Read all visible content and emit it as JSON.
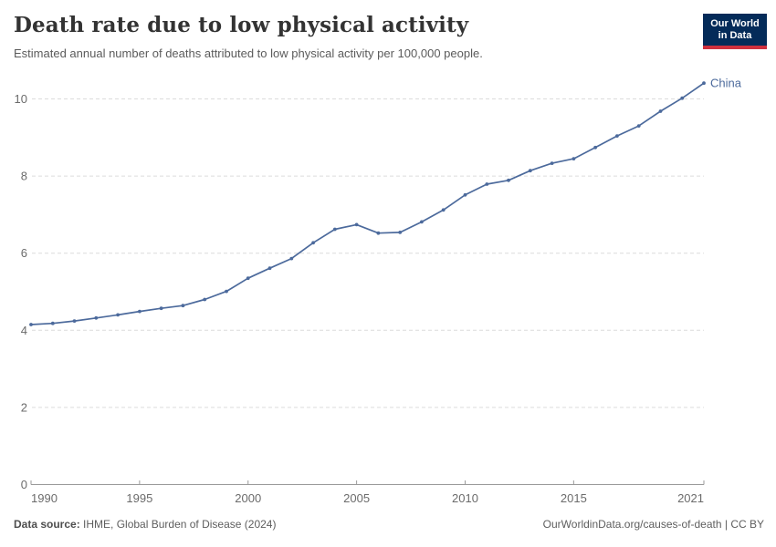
{
  "header": {
    "title": "Death rate due to low physical activity",
    "subtitle": "Estimated annual number of deaths attributed to low physical activity per 100,000 people."
  },
  "logo": {
    "line1": "Our World",
    "line2": "in Data",
    "bg_color": "#042b59",
    "bar_color": "#cf303e"
  },
  "chart_data": {
    "type": "line",
    "title": "Death rate due to low physical activity",
    "xlabel": "",
    "ylabel": "",
    "xlim": [
      1990,
      2021
    ],
    "ylim": [
      0,
      10.6
    ],
    "x_ticks": [
      1990,
      1995,
      2000,
      2005,
      2010,
      2015,
      2021
    ],
    "y_ticks": [
      0,
      2,
      4,
      6,
      8,
      10
    ],
    "grid": "horizontal-dashed",
    "legend_position": "end-of-line-label",
    "series": [
      {
        "name": "China",
        "color": "#4c6a9c",
        "x": [
          1990,
          1991,
          1992,
          1993,
          1994,
          1995,
          1996,
          1997,
          1998,
          1999,
          2000,
          2001,
          2002,
          2003,
          2004,
          2005,
          2006,
          2007,
          2008,
          2009,
          2010,
          2011,
          2012,
          2013,
          2014,
          2015,
          2016,
          2017,
          2018,
          2019,
          2020,
          2021
        ],
        "values": [
          4.15,
          4.18,
          4.24,
          4.32,
          4.4,
          4.49,
          4.57,
          4.64,
          4.8,
          5.01,
          5.35,
          5.61,
          5.86,
          6.27,
          6.62,
          6.74,
          6.52,
          6.54,
          6.81,
          7.12,
          7.51,
          7.79,
          7.89,
          8.14,
          8.33,
          8.45,
          8.74,
          9.04,
          9.3,
          9.68,
          10.02,
          10.41
        ]
      }
    ]
  },
  "footer": {
    "source_label": "Data source:",
    "source_text": " IHME, Global Burden of Disease (2024)",
    "right_text": "OurWorldinData.org/causes-of-death | CC BY"
  }
}
